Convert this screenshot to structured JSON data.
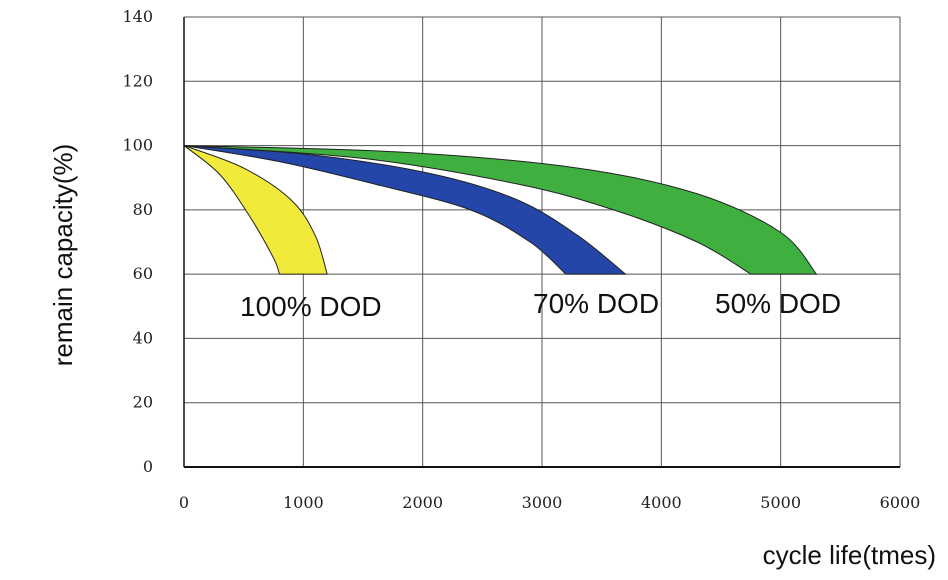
{
  "chart_data": {
    "type": "area",
    "xlabel": "cycle life(tmes)",
    "ylabel": "remain capacity(%)",
    "xlim": [
      0,
      6000
    ],
    "ylim": [
      0,
      140
    ],
    "x_ticks": [
      0,
      1000,
      2000,
      3000,
      4000,
      5000,
      6000
    ],
    "y_ticks": [
      0,
      20,
      40,
      60,
      80,
      100,
      120,
      140
    ],
    "grid": true,
    "series": [
      {
        "name": "100% DOD",
        "color": "#f2ea3a",
        "lower_band": [
          [
            0,
            100
          ],
          [
            300,
            91
          ],
          [
            550,
            78
          ],
          [
            750,
            65
          ],
          [
            800,
            60
          ]
        ],
        "upper_band": [
          [
            0,
            100
          ],
          [
            500,
            93
          ],
          [
            900,
            83
          ],
          [
            1100,
            72
          ],
          [
            1200,
            60
          ]
        ]
      },
      {
        "name": "70% DOD",
        "color": "#2346a8",
        "lower_band": [
          [
            0,
            100
          ],
          [
            800,
            95
          ],
          [
            1600,
            88
          ],
          [
            2400,
            80
          ],
          [
            2900,
            70
          ],
          [
            3200,
            60
          ]
        ],
        "upper_band": [
          [
            0,
            100
          ],
          [
            1100,
            97
          ],
          [
            2100,
            91
          ],
          [
            2800,
            83
          ],
          [
            3300,
            72
          ],
          [
            3700,
            60
          ]
        ]
      },
      {
        "name": "50% DOD",
        "color": "#3fb03f",
        "lower_band": [
          [
            0,
            100
          ],
          [
            1500,
            96
          ],
          [
            2800,
            88
          ],
          [
            3600,
            80
          ],
          [
            4300,
            70
          ],
          [
            4750,
            60
          ]
        ],
        "upper_band": [
          [
            0,
            100
          ],
          [
            1800,
            98
          ],
          [
            3300,
            93
          ],
          [
            4300,
            85
          ],
          [
            5000,
            73
          ],
          [
            5300,
            60
          ]
        ]
      }
    ]
  }
}
